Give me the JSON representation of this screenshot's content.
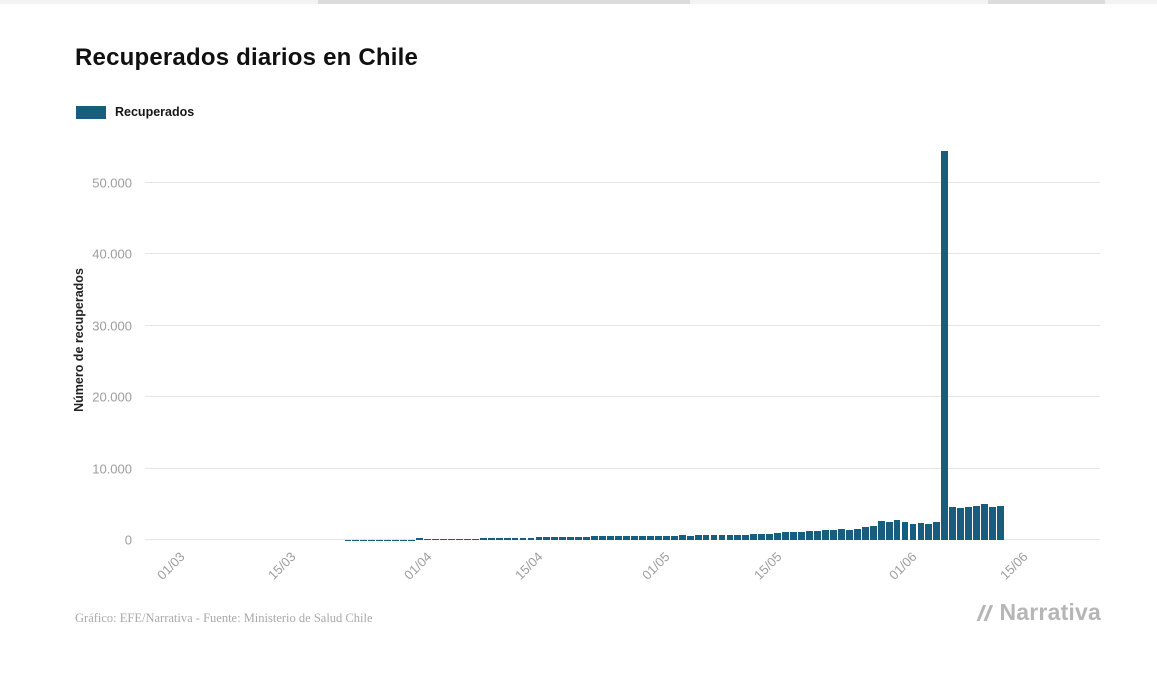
{
  "header": {
    "title": "Recuperados diarios en Chile"
  },
  "legend": {
    "items": [
      {
        "label": "Recuperados",
        "color": "#175e7e"
      }
    ]
  },
  "chart_data": {
    "type": "bar",
    "title": "Recuperados diarios en Chile",
    "xlabel": "",
    "ylabel": "Número de recuperados",
    "legend_position": "top-left",
    "grid": true,
    "ylim": [
      0,
      56000
    ],
    "year": 2020,
    "x_domain": [
      "26/02",
      "25/06"
    ],
    "yticks": [
      {
        "value": 0,
        "label": "0"
      },
      {
        "value": 10000,
        "label": "10.000"
      },
      {
        "value": 20000,
        "label": "20.000"
      },
      {
        "value": 30000,
        "label": "30.000"
      },
      {
        "value": 40000,
        "label": "40.000"
      },
      {
        "value": 50000,
        "label": "50.000"
      }
    ],
    "xticks": [
      "01/03",
      "15/03",
      "01/04",
      "15/04",
      "01/05",
      "15/05",
      "01/06",
      "15/06"
    ],
    "series_name": "Recuperados",
    "bar_color": "#175e7e",
    "points": [
      [
        "19/03",
        6
      ],
      [
        "20/03",
        8
      ],
      [
        "21/03",
        10
      ],
      [
        "22/03",
        12
      ],
      [
        "23/03",
        15
      ],
      [
        "24/03",
        20
      ],
      [
        "25/03",
        25
      ],
      [
        "26/03",
        30
      ],
      [
        "27/03",
        35
      ],
      [
        "28/03",
        40
      ],
      [
        "29/03",
        45
      ],
      [
        "30/03",
        55
      ],
      [
        "31/03",
        230
      ],
      [
        "01/04",
        120
      ],
      [
        "02/04",
        135
      ],
      [
        "03/04",
        150
      ],
      [
        "04/04",
        145
      ],
      [
        "05/04",
        160
      ],
      [
        "06/04",
        175
      ],
      [
        "07/04",
        195
      ],
      [
        "08/04",
        215
      ],
      [
        "09/04",
        235
      ],
      [
        "10/04",
        255
      ],
      [
        "11/04",
        275
      ],
      [
        "12/04",
        295
      ],
      [
        "13/04",
        320
      ],
      [
        "14/04",
        345
      ],
      [
        "15/04",
        375
      ],
      [
        "16/04",
        400
      ],
      [
        "17/04",
        420
      ],
      [
        "18/04",
        445
      ],
      [
        "19/04",
        430
      ],
      [
        "20/04",
        455
      ],
      [
        "21/04",
        475
      ],
      [
        "22/04",
        500
      ],
      [
        "23/04",
        520
      ],
      [
        "24/04",
        540
      ],
      [
        "25/04",
        555
      ],
      [
        "26/04",
        545
      ],
      [
        "27/04",
        565
      ],
      [
        "28/04",
        585
      ],
      [
        "29/04",
        600
      ],
      [
        "30/04",
        580
      ],
      [
        "01/05",
        595
      ],
      [
        "02/05",
        615
      ],
      [
        "03/05",
        635
      ],
      [
        "04/05",
        605
      ],
      [
        "05/05",
        645
      ],
      [
        "06/05",
        665
      ],
      [
        "07/05",
        695
      ],
      [
        "08/05",
        675
      ],
      [
        "09/05",
        655
      ],
      [
        "10/05",
        700
      ],
      [
        "11/05",
        745
      ],
      [
        "12/05",
        795
      ],
      [
        "13/05",
        845
      ],
      [
        "14/05",
        895
      ],
      [
        "15/05",
        995
      ],
      [
        "16/05",
        1090
      ],
      [
        "17/05",
        1190
      ],
      [
        "18/05",
        1145
      ],
      [
        "19/05",
        1290
      ],
      [
        "20/05",
        1245
      ],
      [
        "21/05",
        1390
      ],
      [
        "22/05",
        1345
      ],
      [
        "23/05",
        1490
      ],
      [
        "24/05",
        1445
      ],
      [
        "25/05",
        1590
      ],
      [
        "26/05",
        1790
      ],
      [
        "27/05",
        1990
      ],
      [
        "28/05",
        2690
      ],
      [
        "29/05",
        2590
      ],
      [
        "30/05",
        2790
      ],
      [
        "31/05",
        2490
      ],
      [
        "01/06",
        2290
      ],
      [
        "02/06",
        2390
      ],
      [
        "03/06",
        2190
      ],
      [
        "04/06",
        2490
      ],
      [
        "05/06",
        54480
      ],
      [
        "06/06",
        4590
      ],
      [
        "07/06",
        4490
      ],
      [
        "08/06",
        4690
      ],
      [
        "09/06",
        4790
      ],
      [
        "10/06",
        5090
      ],
      [
        "11/06",
        4690
      ],
      [
        "12/06",
        4790
      ]
    ]
  },
  "footer": {
    "credit": "Gráfico: EFE/Narrativa - Fuente: Ministerio de Salud Chile",
    "brand": "Narrativa"
  }
}
